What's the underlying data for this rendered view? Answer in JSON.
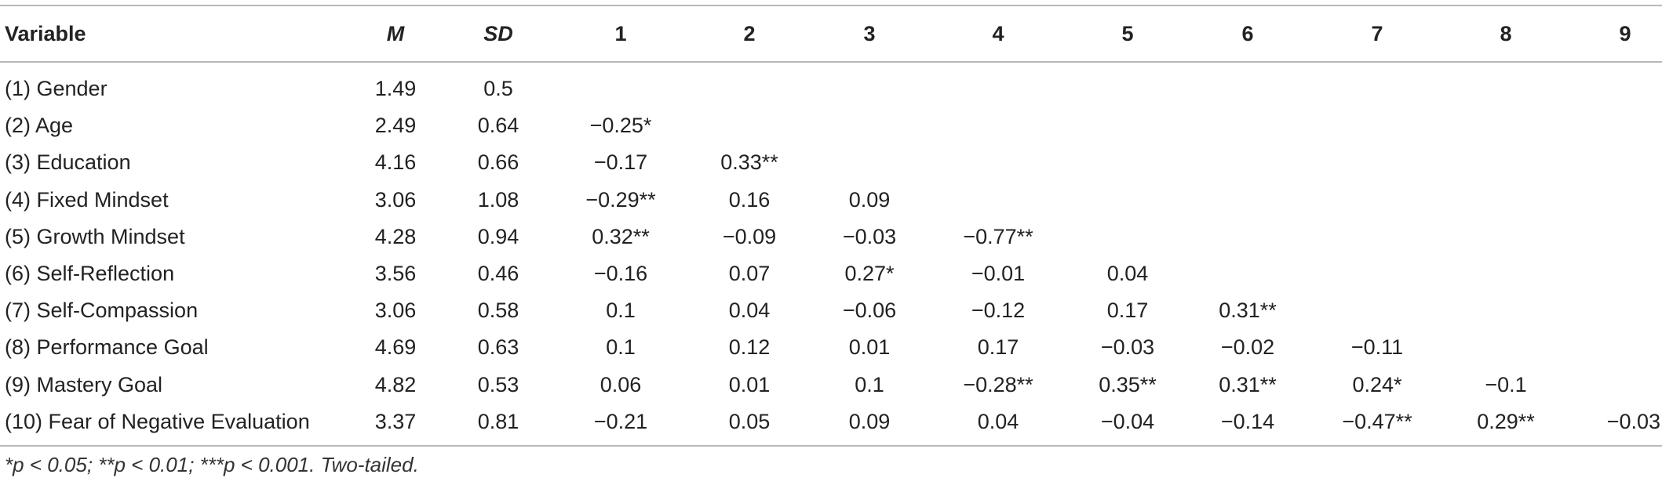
{
  "table": {
    "headers": {
      "variable": "Variable",
      "m": "M",
      "sd": "SD",
      "cols": [
        "1",
        "2",
        "3",
        "4",
        "5",
        "6",
        "7",
        "8",
        "9"
      ]
    },
    "rows": [
      {
        "label": "(1) Gender",
        "m": "1.49",
        "sd": "0.5",
        "cells": [
          "",
          "",
          "",
          "",
          "",
          "",
          "",
          "",
          ""
        ]
      },
      {
        "label": "(2) Age",
        "m": "2.49",
        "sd": "0.64",
        "cells": [
          "−0.25*",
          "",
          "",
          "",
          "",
          "",
          "",
          "",
          ""
        ]
      },
      {
        "label": "(3) Education",
        "m": "4.16",
        "sd": "0.66",
        "cells": [
          "−0.17",
          "0.33**",
          "",
          "",
          "",
          "",
          "",
          "",
          ""
        ]
      },
      {
        "label": "(4) Fixed Mindset",
        "m": "3.06",
        "sd": "1.08",
        "cells": [
          "−0.29**",
          "0.16",
          "0.09",
          "",
          "",
          "",
          "",
          "",
          ""
        ]
      },
      {
        "label": "(5) Growth Mindset",
        "m": "4.28",
        "sd": "0.94",
        "cells": [
          "0.32**",
          "−0.09",
          "−0.03",
          "−0.77**",
          "",
          "",
          "",
          "",
          ""
        ]
      },
      {
        "label": "(6) Self-Reflection",
        "m": "3.56",
        "sd": "0.46",
        "cells": [
          "−0.16",
          "0.07",
          "0.27*",
          "−0.01",
          "0.04",
          "",
          "",
          "",
          ""
        ]
      },
      {
        "label": "(7) Self-Compassion",
        "m": "3.06",
        "sd": "0.58",
        "cells": [
          "0.1",
          "0.04",
          "−0.06",
          "−0.12",
          "0.17",
          "0.31**",
          "",
          "",
          ""
        ]
      },
      {
        "label": "(8) Performance Goal",
        "m": "4.69",
        "sd": "0.63",
        "cells": [
          "0.1",
          "0.12",
          "0.01",
          "0.17",
          "−0.03",
          "−0.02",
          "−0.11",
          "",
          ""
        ]
      },
      {
        "label": "(9) Mastery Goal",
        "m": "4.82",
        "sd": "0.53",
        "cells": [
          "0.06",
          "0.01",
          "0.1",
          "−0.28**",
          "0.35**",
          "0.31**",
          "0.24*",
          "−0.1",
          ""
        ]
      },
      {
        "label": "(10) Fear of Negative Evaluation",
        "m": "3.37",
        "sd": "0.81",
        "cells": [
          "−0.21",
          "0.05",
          "0.09",
          "0.04",
          "−0.04",
          "−0.14",
          "−0.47**",
          "0.29**",
          "−0.03"
        ]
      }
    ],
    "footnote": "*p < 0.05; **p < 0.01; ***p < 0.001. Two-tailed."
  }
}
